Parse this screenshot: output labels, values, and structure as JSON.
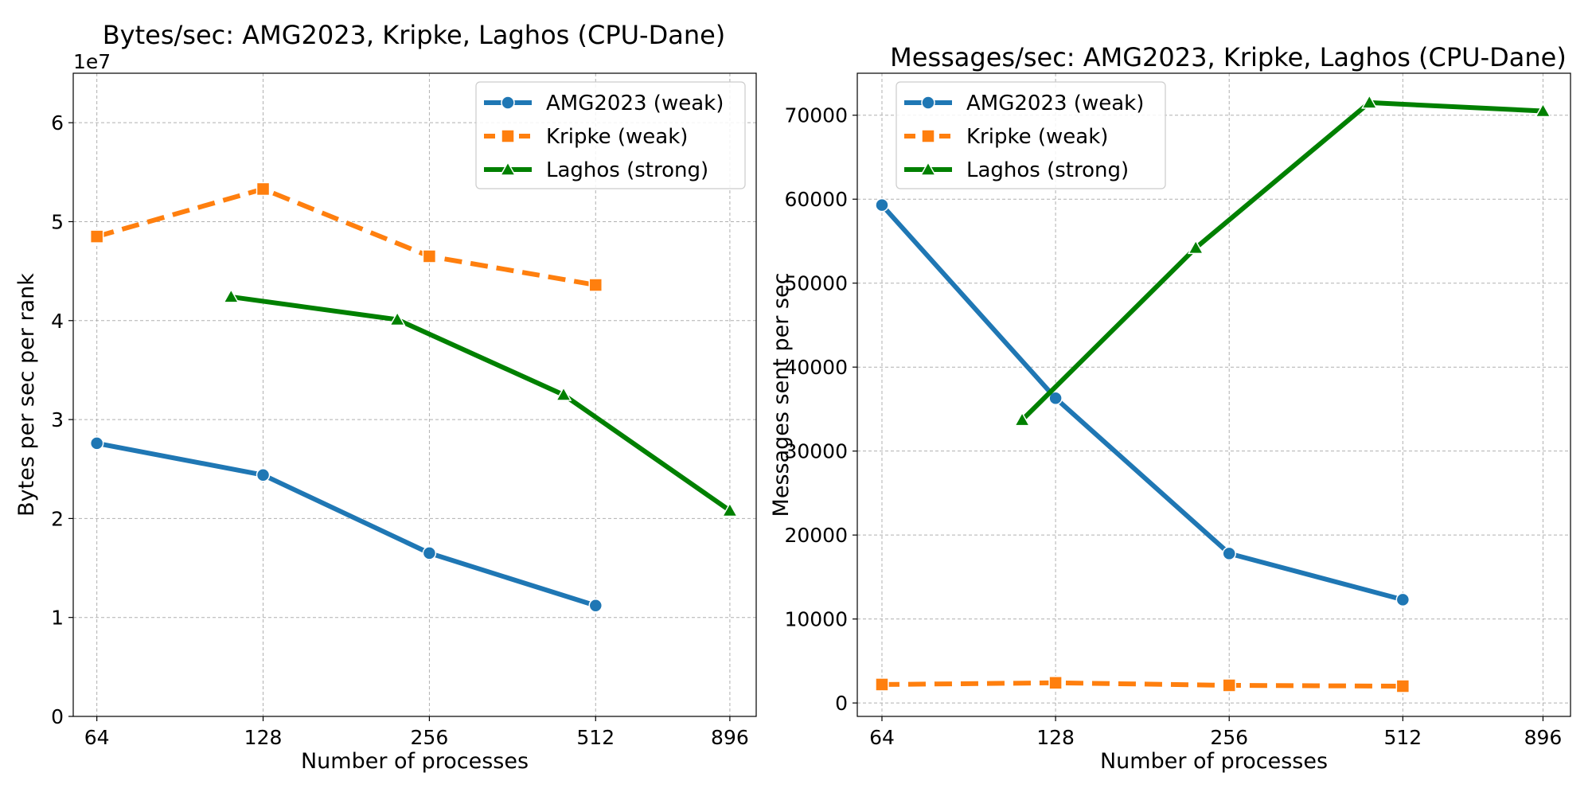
{
  "chart_data": [
    {
      "type": "line",
      "title": "Bytes/sec: AMG2023, Kripke, Laghos (CPU-Dane)",
      "xlabel": "Number of processes",
      "ylabel": "Bytes per sec per rank",
      "y_offset_label": "1e7",
      "x_scale": "log2",
      "x_ticks": [
        64,
        128,
        256,
        512,
        896
      ],
      "xlim": [
        58,
        1000
      ],
      "y_ticks": [
        0,
        1,
        2,
        3,
        4,
        5,
        6
      ],
      "ylim": [
        0,
        6.5
      ],
      "grid": true,
      "legend_position": "top-right",
      "series": [
        {
          "name": "AMG2023 (weak)",
          "color": "#1f77b4",
          "marker": "circle",
          "dash": "solid",
          "x": [
            64,
            128,
            256,
            512
          ],
          "y": [
            2.76,
            2.44,
            1.65,
            1.12
          ]
        },
        {
          "name": "Kripke (weak)",
          "color": "#ff7f0e",
          "marker": "square",
          "dash": "dashed",
          "x": [
            64,
            128,
            256,
            512
          ],
          "y": [
            4.85,
            5.33,
            4.65,
            4.36
          ]
        },
        {
          "name": "Laghos (strong)",
          "color": "#008000",
          "marker": "triangle",
          "dash": "solid",
          "x": [
            112,
            224,
            448,
            896
          ],
          "y": [
            4.24,
            4.01,
            3.25,
            2.08
          ]
        }
      ]
    },
    {
      "type": "line",
      "title": "Messages/sec: AMG2023, Kripke, Laghos (CPU-Dane)",
      "xlabel": "Number of processes",
      "ylabel": "Messages sent per sec",
      "x_scale": "log2",
      "x_ticks": [
        64,
        128,
        256,
        512,
        896
      ],
      "xlim": [
        58,
        1000
      ],
      "y_ticks": [
        0,
        10000,
        20000,
        30000,
        40000,
        50000,
        60000,
        70000
      ],
      "ylim": [
        -1600,
        75000
      ],
      "grid": true,
      "legend_position": "top-left",
      "series": [
        {
          "name": "AMG2023 (weak)",
          "color": "#1f77b4",
          "marker": "circle",
          "dash": "solid",
          "x": [
            64,
            128,
            256,
            512
          ],
          "y": [
            59300,
            36300,
            17800,
            12300
          ]
        },
        {
          "name": "Kripke (weak)",
          "color": "#ff7f0e",
          "marker": "square",
          "dash": "dashed",
          "x": [
            64,
            128,
            256,
            512
          ],
          "y": [
            2200,
            2400,
            2100,
            2000
          ]
        },
        {
          "name": "Laghos (strong)",
          "color": "#008000",
          "marker": "triangle",
          "dash": "solid",
          "x": [
            112,
            224,
            448,
            896
          ],
          "y": [
            33700,
            54200,
            71500,
            70500
          ]
        }
      ]
    }
  ]
}
